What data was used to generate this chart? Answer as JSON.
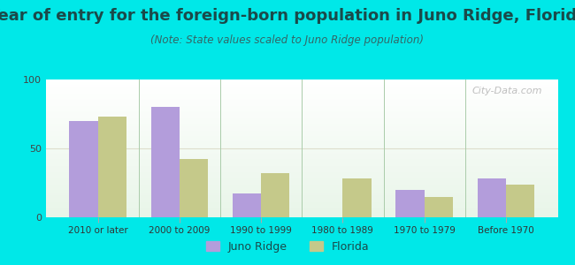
{
  "title": "Year of entry for the foreign-born population in Juno Ridge, Florida",
  "subtitle": "(Note: State values scaled to Juno Ridge population)",
  "categories": [
    "2010 or later",
    "2000 to 2009",
    "1990 to 1999",
    "1980 to 1989",
    "1970 to 1979",
    "Before 1970"
  ],
  "juno_ridge": [
    70,
    80,
    17,
    0,
    20,
    28
  ],
  "florida": [
    73,
    42,
    32,
    28,
    15,
    24
  ],
  "juno_ridge_color": "#b39ddb",
  "florida_color": "#c5c98a",
  "background_color": "#00e8e8",
  "ylim": [
    0,
    100
  ],
  "yticks": [
    0,
    50,
    100
  ],
  "bar_width": 0.35,
  "title_fontsize": 13,
  "subtitle_fontsize": 8.5,
  "legend_labels": [
    "Juno Ridge",
    "Florida"
  ],
  "watermark": "City-Data.com",
  "sep_color": "#aaccaa",
  "grid_color": "#ddddcc"
}
